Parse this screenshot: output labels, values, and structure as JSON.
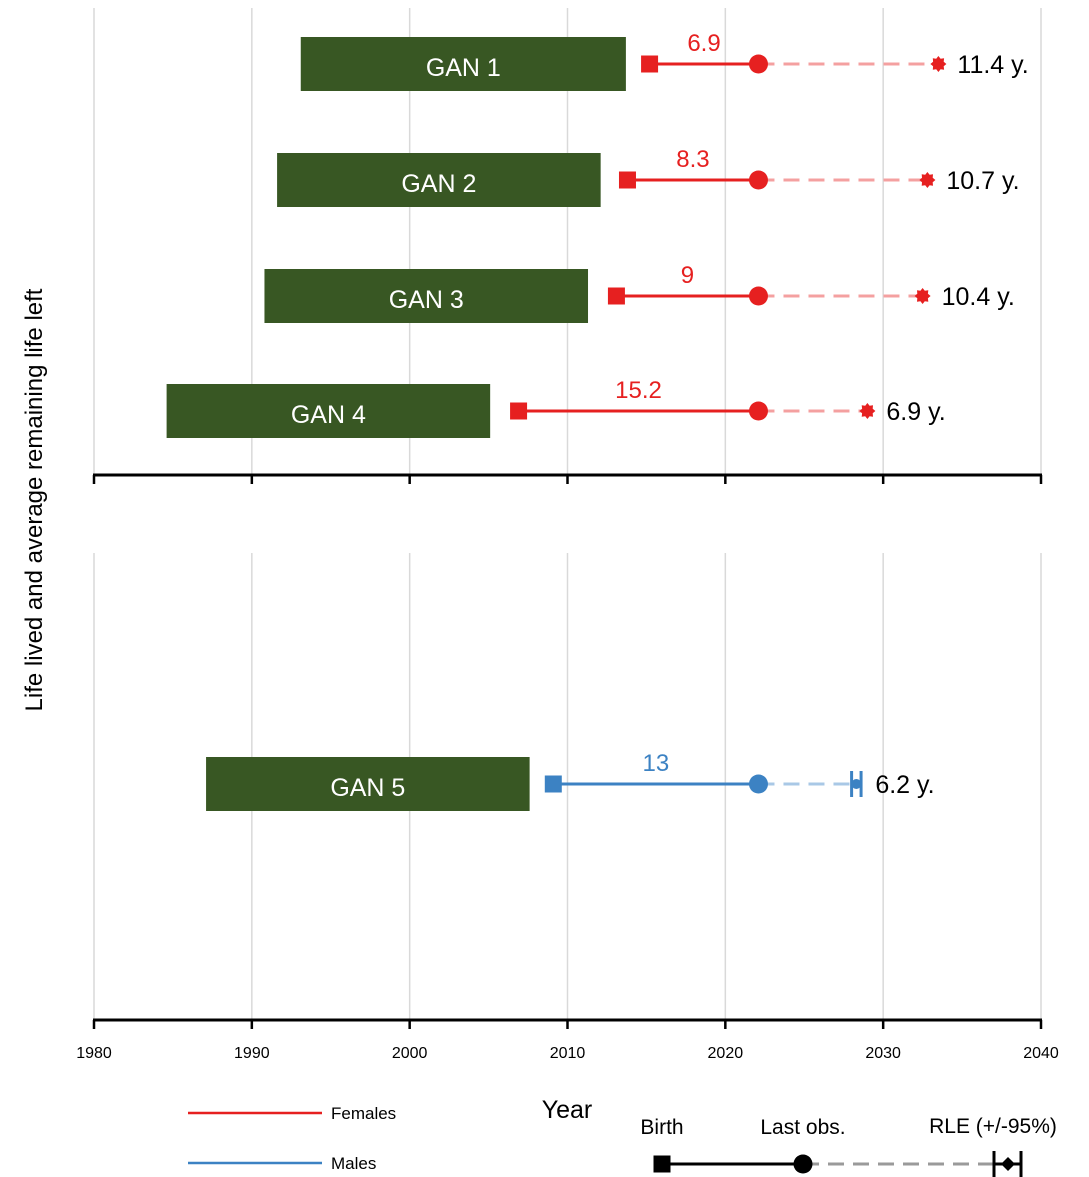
{
  "chart_data": {
    "type": "line",
    "title": "",
    "xlabel": "Year",
    "ylabel": "Life lived  and average remaining life left",
    "xlim": [
      1980,
      2040
    ],
    "x_ticks": [
      "1980",
      "1990",
      "2000",
      "2010",
      "2020",
      "2030",
      "2040"
    ],
    "grid": "vertical",
    "panels": [
      {
        "series": "Females",
        "individuals": [
          {
            "label": "GAN 1",
            "bar": [
              1993.1,
              2013.7
            ],
            "birth": 2015.2,
            "last_obs": 2022.1,
            "rle_end": 2033.5,
            "lived": "6.9",
            "rle": "11.4 y."
          },
          {
            "label": "GAN 2",
            "bar": [
              1991.6,
              2012.1
            ],
            "birth": 2013.8,
            "last_obs": 2022.1,
            "rle_end": 2032.8,
            "lived": "8.3",
            "rle": "10.7 y."
          },
          {
            "label": "GAN 3",
            "bar": [
              1990.8,
              2011.3
            ],
            "birth": 2013.1,
            "last_obs": 2022.1,
            "rle_end": 2032.5,
            "lived": "9",
            "rle": "10.4 y."
          },
          {
            "label": "GAN 4",
            "bar": [
              1984.6,
              2005.1
            ],
            "birth": 2006.9,
            "last_obs": 2022.1,
            "rle_end": 2029.0,
            "lived": "15.2",
            "rle": "6.9 y."
          }
        ]
      },
      {
        "series": "Males",
        "individuals": [
          {
            "label": "GAN 5",
            "bar": [
              1987.1,
              2007.6
            ],
            "birth": 2009.1,
            "last_obs": 2022.1,
            "rle_end": 2028.3,
            "rle_ci": [
              2028.0,
              2028.6
            ],
            "lived": "13",
            "rle": "6.2 y."
          }
        ]
      }
    ],
    "legend": {
      "placement": "bottom",
      "series": [
        {
          "name": "Females",
          "color": "#e62020"
        },
        {
          "name": "Males",
          "color": "#3c82c3"
        }
      ],
      "markers": [
        "Birth",
        "Last obs.",
        "RLE (+/-95%)"
      ]
    },
    "colors": {
      "females": "#e62020",
      "females_dashed": "#f4a0a0",
      "males": "#3c82c3",
      "males_dashed": "#a9c8e6",
      "bar_fill": "#385723",
      "grid": "#d9d9d9"
    }
  }
}
